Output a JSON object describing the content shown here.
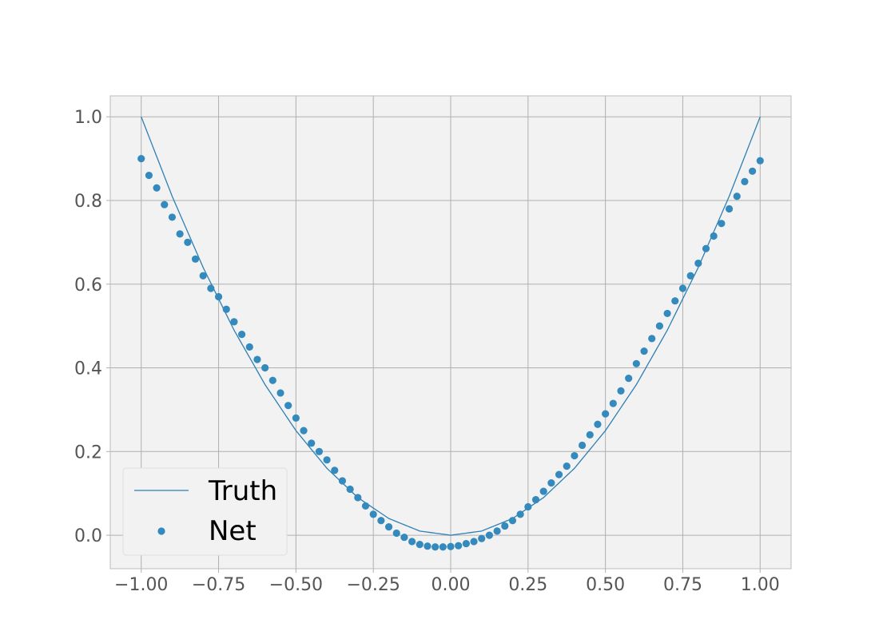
{
  "chart_data": {
    "type": "line",
    "title": "",
    "xlabel": "",
    "ylabel": "",
    "xlim": [
      -1.1,
      1.1
    ],
    "ylim": [
      -0.08,
      1.05
    ],
    "grid": true,
    "legend_position": "lower-left",
    "x_ticks": [
      {
        "value": -1.0,
        "label": "−1.00"
      },
      {
        "value": -0.75,
        "label": "−0.75"
      },
      {
        "value": -0.5,
        "label": "−0.50"
      },
      {
        "value": -0.25,
        "label": "−0.25"
      },
      {
        "value": 0.0,
        "label": "0.00"
      },
      {
        "value": 0.25,
        "label": "0.25"
      },
      {
        "value": 0.5,
        "label": "0.50"
      },
      {
        "value": 0.75,
        "label": "0.75"
      },
      {
        "value": 1.0,
        "label": "1.00"
      }
    ],
    "y_ticks": [
      {
        "value": 0.0,
        "label": "0.0"
      },
      {
        "value": 0.2,
        "label": "0.2"
      },
      {
        "value": 0.4,
        "label": "0.4"
      },
      {
        "value": 0.6,
        "label": "0.6"
      },
      {
        "value": 0.8,
        "label": "0.8"
      },
      {
        "value": 1.0,
        "label": "1.0"
      }
    ],
    "series": [
      {
        "name": "Truth",
        "kind": "line",
        "color": "#2e7fb5",
        "x": [
          -1.0,
          -0.9,
          -0.8,
          -0.7,
          -0.6,
          -0.5,
          -0.4,
          -0.3,
          -0.2,
          -0.1,
          0.0,
          0.1,
          0.2,
          0.3,
          0.4,
          0.5,
          0.6,
          0.7,
          0.8,
          0.9,
          1.0
        ],
        "y": [
          1.0,
          0.81,
          0.64,
          0.49,
          0.36,
          0.25,
          0.16,
          0.09,
          0.04,
          0.01,
          0.0,
          0.01,
          0.04,
          0.09,
          0.16,
          0.25,
          0.36,
          0.49,
          0.64,
          0.81,
          1.0
        ]
      },
      {
        "name": "Net",
        "kind": "scatter",
        "color": "#348abd",
        "x": [
          -1.0,
          -0.975,
          -0.95,
          -0.925,
          -0.9,
          -0.875,
          -0.85,
          -0.825,
          -0.8,
          -0.775,
          -0.75,
          -0.725,
          -0.7,
          -0.675,
          -0.65,
          -0.625,
          -0.6,
          -0.575,
          -0.55,
          -0.525,
          -0.5,
          -0.475,
          -0.45,
          -0.425,
          -0.4,
          -0.375,
          -0.35,
          -0.325,
          -0.3,
          -0.275,
          -0.25,
          -0.225,
          -0.2,
          -0.175,
          -0.15,
          -0.125,
          -0.1,
          -0.075,
          -0.05,
          -0.025,
          0.0,
          0.025,
          0.05,
          0.075,
          0.1,
          0.125,
          0.15,
          0.175,
          0.2,
          0.225,
          0.25,
          0.275,
          0.3,
          0.325,
          0.35,
          0.375,
          0.4,
          0.425,
          0.45,
          0.475,
          0.5,
          0.525,
          0.55,
          0.575,
          0.6,
          0.625,
          0.65,
          0.675,
          0.7,
          0.725,
          0.75,
          0.775,
          0.8,
          0.825,
          0.85,
          0.875,
          0.9,
          0.925,
          0.95,
          0.975,
          1.0
        ],
        "y": [
          0.9,
          0.86,
          0.83,
          0.79,
          0.76,
          0.72,
          0.7,
          0.66,
          0.62,
          0.59,
          0.57,
          0.54,
          0.51,
          0.48,
          0.45,
          0.42,
          0.4,
          0.37,
          0.34,
          0.31,
          0.28,
          0.25,
          0.22,
          0.2,
          0.18,
          0.155,
          0.13,
          0.11,
          0.09,
          0.07,
          0.05,
          0.035,
          0.02,
          0.005,
          -0.005,
          -0.015,
          -0.022,
          -0.026,
          -0.028,
          -0.028,
          -0.027,
          -0.025,
          -0.02,
          -0.015,
          -0.008,
          0.0,
          0.01,
          0.022,
          0.035,
          0.05,
          0.068,
          0.085,
          0.105,
          0.125,
          0.145,
          0.165,
          0.19,
          0.215,
          0.24,
          0.265,
          0.29,
          0.315,
          0.345,
          0.375,
          0.41,
          0.44,
          0.47,
          0.5,
          0.53,
          0.56,
          0.59,
          0.62,
          0.65,
          0.685,
          0.715,
          0.745,
          0.78,
          0.81,
          0.845,
          0.87,
          0.895
        ]
      }
    ]
  }
}
